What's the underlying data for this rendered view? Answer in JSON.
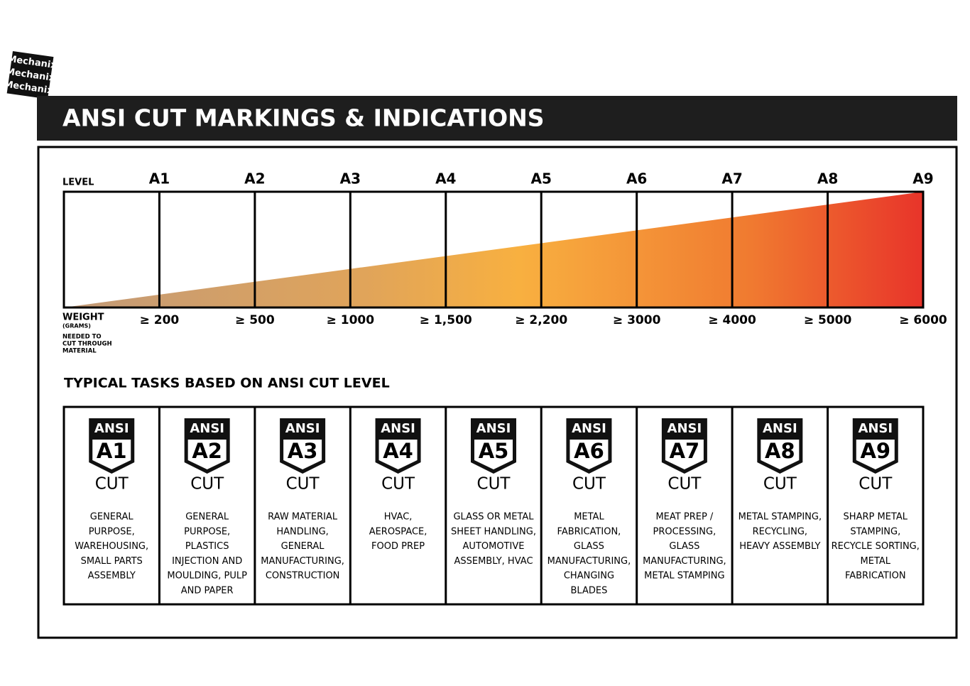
{
  "logo": "Mechanix",
  "header": {
    "title": "ANSI CUT MARKINGS & INDICATIONS"
  },
  "scale": {
    "level_label": "LEVEL",
    "weight_label": "WEIGHT",
    "weight_unit": "(GRAMS)",
    "weight_note": [
      "NEEDED TO",
      "CUT THROUGH",
      "MATERIAL"
    ],
    "levels": [
      {
        "level": "A1",
        "weight": "≥ 200"
      },
      {
        "level": "A2",
        "weight": "≥ 500"
      },
      {
        "level": "A3",
        "weight": "≥ 1000"
      },
      {
        "level": "A4",
        "weight": "≥ 1,500"
      },
      {
        "level": "A5",
        "weight": "≥ 2,200"
      },
      {
        "level": "A6",
        "weight": "≥ 3000"
      },
      {
        "level": "A7",
        "weight": "≥ 4000"
      },
      {
        "level": "A8",
        "weight": "≥ 5000"
      },
      {
        "level": "A9",
        "weight": "≥ 6000"
      }
    ]
  },
  "tasks": {
    "title": "TYPICAL TASKS BASED ON ANSI CUT LEVEL",
    "cards": [
      {
        "badge_top": "ANSI",
        "code": "A1",
        "badge_bottom": "CUT",
        "lines": [
          "GENERAL",
          "PURPOSE,",
          "WAREHOUSING,",
          "SMALL PARTS",
          "ASSEMBLY"
        ]
      },
      {
        "badge_top": "ANSI",
        "code": "A2",
        "badge_bottom": "CUT",
        "lines": [
          "GENERAL",
          "PURPOSE,",
          "PLASTICS",
          "INJECTION AND",
          "MOULDING, PULP",
          "AND PAPER"
        ]
      },
      {
        "badge_top": "ANSI",
        "code": "A3",
        "badge_bottom": "CUT",
        "lines": [
          "RAW MATERIAL",
          "HANDLING,",
          "GENERAL",
          "MANUFACTURING,",
          "CONSTRUCTION"
        ]
      },
      {
        "badge_top": "ANSI",
        "code": "A4",
        "badge_bottom": "CUT",
        "lines": [
          "HVAC,",
          "AEROSPACE,",
          "FOOD PREP"
        ]
      },
      {
        "badge_top": "ANSI",
        "code": "A5",
        "badge_bottom": "CUT",
        "lines": [
          "GLASS OR METAL",
          "SHEET HANDLING,",
          "AUTOMOTIVE",
          "ASSEMBLY, HVAC"
        ]
      },
      {
        "badge_top": "ANSI",
        "code": "A6",
        "badge_bottom": "CUT",
        "lines": [
          "METAL",
          "FABRICATION,",
          "GLASS",
          "MANUFACTURING,",
          "CHANGING",
          "BLADES"
        ]
      },
      {
        "badge_top": "ANSI",
        "code": "A7",
        "badge_bottom": "CUT",
        "lines": [
          "MEAT PREP /",
          "PROCESSING,",
          "GLASS",
          "MANUFACTURING,",
          "METAL STAMPING"
        ]
      },
      {
        "badge_top": "ANSI",
        "code": "A8",
        "badge_bottom": "CUT",
        "lines": [
          "METAL STAMPING,",
          "RECYCLING,",
          "HEAVY ASSEMBLY"
        ]
      },
      {
        "badge_top": "ANSI",
        "code": "A9",
        "badge_bottom": "CUT",
        "lines": [
          "SHARP METAL",
          "STAMPING,",
          "RECYCLE SORTING,",
          "METAL",
          "FABRICATION"
        ]
      }
    ]
  }
}
